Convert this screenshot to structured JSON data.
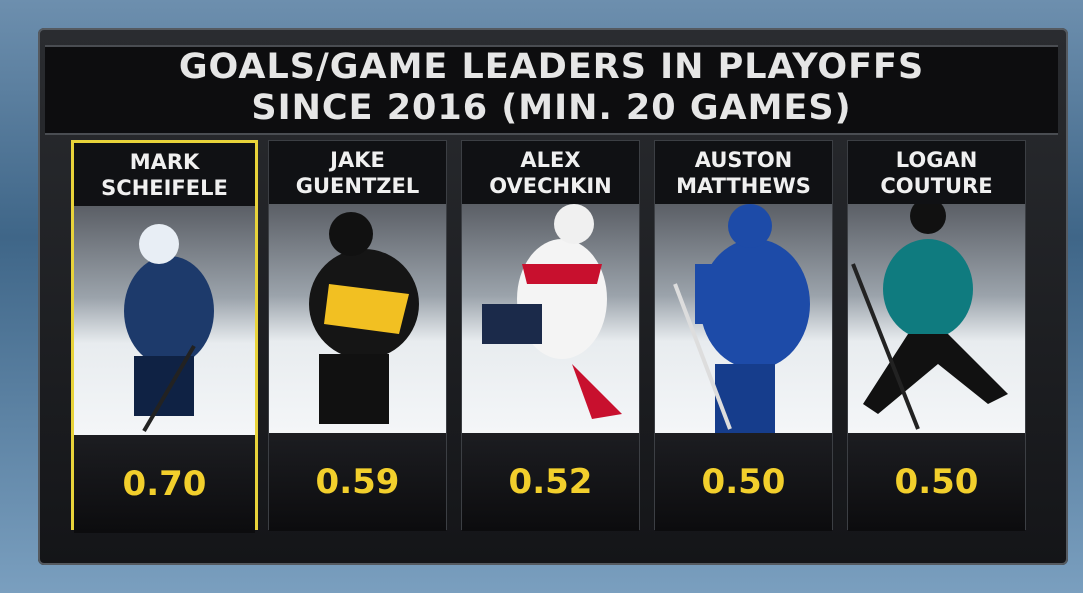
{
  "header": {
    "line1": "GOALS/GAME LEADERS IN PLAYOFFS",
    "line2": "SINCE 2016 (MIN. 20 GAMES)"
  },
  "players": [
    {
      "first": "MARK",
      "last": "SCHEIFELE",
      "value": "0.70"
    },
    {
      "first": "JAKE",
      "last": "GUENTZEL",
      "value": "0.59"
    },
    {
      "first": "ALEX",
      "last": "OVECHKIN",
      "value": "0.52"
    },
    {
      "first": "AUSTON",
      "last": "MATTHEWS",
      "value": "0.50"
    },
    {
      "first": "LOGAN",
      "last": "COUTURE",
      "value": "0.50"
    }
  ]
}
